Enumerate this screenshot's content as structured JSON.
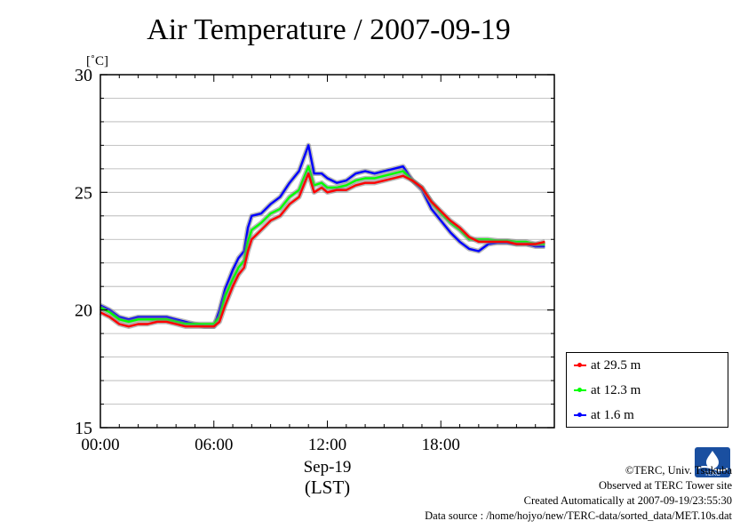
{
  "chart_data": {
    "type": "line",
    "title": "Air Temperature / 2007-09-19",
    "y_unit": "[˚C]",
    "ylim": [
      15,
      30
    ],
    "y_ticks": [
      15,
      20,
      25,
      30
    ],
    "y_minor_step": 1,
    "xlim": [
      0,
      24
    ],
    "x_ticks": [
      {
        "hour": 0,
        "label": "00:00"
      },
      {
        "hour": 6,
        "label": "06:00"
      },
      {
        "hour": 12,
        "label": "12:00"
      },
      {
        "hour": 18,
        "label": "18:00"
      }
    ],
    "x_date_label": "Sep-19",
    "x_unit_label": "(LST)",
    "legend_position": "bottom-right outside",
    "series": [
      {
        "name": "at 29.5 m",
        "color": "#ff0000",
        "points": [
          [
            0,
            19.9
          ],
          [
            0.5,
            19.7
          ],
          [
            1,
            19.4
          ],
          [
            1.5,
            19.3
          ],
          [
            2,
            19.4
          ],
          [
            2.5,
            19.4
          ],
          [
            3,
            19.5
          ],
          [
            3.5,
            19.5
          ],
          [
            4,
            19.4
          ],
          [
            4.5,
            19.3
          ],
          [
            5,
            19.3
          ],
          [
            5.5,
            19.3
          ],
          [
            6,
            19.3
          ],
          [
            6.3,
            19.5
          ],
          [
            6.6,
            20.2
          ],
          [
            7,
            21.0
          ],
          [
            7.3,
            21.5
          ],
          [
            7.6,
            21.8
          ],
          [
            7.8,
            22.5
          ],
          [
            8,
            23.0
          ],
          [
            8.5,
            23.4
          ],
          [
            9,
            23.8
          ],
          [
            9.5,
            24.0
          ],
          [
            10,
            24.5
          ],
          [
            10.5,
            24.8
          ],
          [
            11,
            25.8
          ],
          [
            11.3,
            25.0
          ],
          [
            11.7,
            25.2
          ],
          [
            12,
            25.0
          ],
          [
            12.5,
            25.1
          ],
          [
            13,
            25.1
          ],
          [
            13.5,
            25.3
          ],
          [
            14,
            25.4
          ],
          [
            14.5,
            25.4
          ],
          [
            15,
            25.5
          ],
          [
            15.5,
            25.6
          ],
          [
            16,
            25.7
          ],
          [
            16.5,
            25.5
          ],
          [
            17,
            25.2
          ],
          [
            17.5,
            24.6
          ],
          [
            18,
            24.2
          ],
          [
            18.5,
            23.8
          ],
          [
            19,
            23.5
          ],
          [
            19.5,
            23.1
          ],
          [
            20,
            22.9
          ],
          [
            20.5,
            22.9
          ],
          [
            21,
            22.9
          ],
          [
            21.5,
            22.9
          ],
          [
            22,
            22.8
          ],
          [
            22.5,
            22.8
          ],
          [
            23,
            22.8
          ],
          [
            23.5,
            22.9
          ]
        ]
      },
      {
        "name": "at 12.3 m",
        "color": "#00ff00",
        "points": [
          [
            0,
            20.1
          ],
          [
            0.5,
            19.9
          ],
          [
            1,
            19.6
          ],
          [
            1.5,
            19.5
          ],
          [
            2,
            19.6
          ],
          [
            2.5,
            19.6
          ],
          [
            3,
            19.6
          ],
          [
            3.5,
            19.6
          ],
          [
            4,
            19.5
          ],
          [
            4.5,
            19.4
          ],
          [
            5,
            19.4
          ],
          [
            5.5,
            19.4
          ],
          [
            6,
            19.4
          ],
          [
            6.3,
            19.7
          ],
          [
            6.6,
            20.6
          ],
          [
            7,
            21.3
          ],
          [
            7.3,
            21.8
          ],
          [
            7.6,
            22.1
          ],
          [
            7.8,
            22.9
          ],
          [
            8,
            23.4
          ],
          [
            8.5,
            23.7
          ],
          [
            9,
            24.1
          ],
          [
            9.5,
            24.3
          ],
          [
            10,
            24.8
          ],
          [
            10.5,
            25.1
          ],
          [
            11,
            26.1
          ],
          [
            11.3,
            25.3
          ],
          [
            11.7,
            25.4
          ],
          [
            12,
            25.2
          ],
          [
            12.5,
            25.2
          ],
          [
            13,
            25.3
          ],
          [
            13.5,
            25.5
          ],
          [
            14,
            25.6
          ],
          [
            14.5,
            25.6
          ],
          [
            15,
            25.7
          ],
          [
            15.5,
            25.8
          ],
          [
            16,
            25.9
          ],
          [
            16.5,
            25.5
          ],
          [
            17,
            25.2
          ],
          [
            17.5,
            24.6
          ],
          [
            18,
            24.1
          ],
          [
            18.5,
            23.7
          ],
          [
            19,
            23.4
          ],
          [
            19.5,
            23.0
          ],
          [
            20,
            23.0
          ],
          [
            20.5,
            23.0
          ],
          [
            21,
            22.95
          ],
          [
            21.5,
            22.95
          ],
          [
            22,
            22.9
          ],
          [
            22.5,
            22.9
          ],
          [
            23,
            22.8
          ],
          [
            23.5,
            22.8
          ]
        ]
      },
      {
        "name": "at 1.6 m",
        "color": "#0000ff",
        "points": [
          [
            0,
            20.2
          ],
          [
            0.5,
            20.0
          ],
          [
            1,
            19.7
          ],
          [
            1.5,
            19.6
          ],
          [
            2,
            19.7
          ],
          [
            2.5,
            19.7
          ],
          [
            3,
            19.7
          ],
          [
            3.5,
            19.7
          ],
          [
            4,
            19.6
          ],
          [
            4.5,
            19.5
          ],
          [
            5,
            19.4
          ],
          [
            5.5,
            19.3
          ],
          [
            6,
            19.3
          ],
          [
            6.3,
            20.0
          ],
          [
            6.6,
            20.9
          ],
          [
            7,
            21.7
          ],
          [
            7.3,
            22.2
          ],
          [
            7.6,
            22.5
          ],
          [
            7.8,
            23.5
          ],
          [
            8,
            24.0
          ],
          [
            8.5,
            24.1
          ],
          [
            9,
            24.5
          ],
          [
            9.5,
            24.8
          ],
          [
            10,
            25.4
          ],
          [
            10.5,
            25.9
          ],
          [
            11,
            27.0
          ],
          [
            11.3,
            25.8
          ],
          [
            11.7,
            25.8
          ],
          [
            12,
            25.6
          ],
          [
            12.5,
            25.4
          ],
          [
            13,
            25.5
          ],
          [
            13.5,
            25.8
          ],
          [
            14,
            25.9
          ],
          [
            14.5,
            25.8
          ],
          [
            15,
            25.9
          ],
          [
            15.5,
            26.0
          ],
          [
            16,
            26.1
          ],
          [
            16.5,
            25.5
          ],
          [
            17,
            25.1
          ],
          [
            17.5,
            24.3
          ],
          [
            18,
            23.8
          ],
          [
            18.5,
            23.3
          ],
          [
            19,
            22.9
          ],
          [
            19.5,
            22.6
          ],
          [
            20,
            22.5
          ],
          [
            20.5,
            22.8
          ],
          [
            21,
            22.85
          ],
          [
            21.5,
            22.85
          ],
          [
            22,
            22.8
          ],
          [
            22.5,
            22.8
          ],
          [
            23,
            22.7
          ],
          [
            23.5,
            22.7
          ]
        ]
      }
    ]
  },
  "footer": {
    "copyright": "©TERC, Univ. Tsukuba",
    "observed": "Observed at TERC Tower site",
    "created": "Created Automatically at 2007-09-19/23:55:30",
    "source": "Data source : /home/hojyo/new/TERC-data/sorted_data/MET.10s.dat"
  },
  "logo_icon": "terc-logo-icon",
  "logo_text": "TERC"
}
